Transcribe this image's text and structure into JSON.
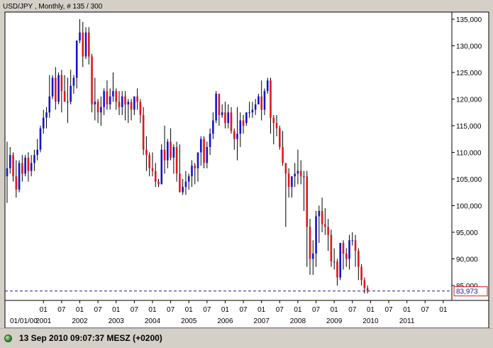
{
  "window": {
    "title": "USD/JPY , Monthly, # 135 / 300"
  },
  "status": {
    "timestamp": "13 Sep 2010 09:07:37  MESZ (+0200)"
  },
  "colors": {
    "bull": "#1414d0",
    "bear": "#e01818",
    "wick": "#000000",
    "plot_bg": "#ffffff",
    "frame_bg": "#d4d0c8",
    "current_line": "#1a1aa0",
    "price_tag_border": "#e01818"
  },
  "chart_data": {
    "type": "candlestick",
    "symbol": "USD/JPY",
    "timeframe": "Monthly",
    "start_date": "2000-01",
    "ylim": [
      80,
      137
    ],
    "y_ticks": [
      85,
      90,
      95,
      100,
      105,
      110,
      115,
      120,
      125,
      130,
      135
    ],
    "y_tick_labels": [
      "85,000",
      "90,000",
      "95,000",
      "100,000",
      "105,000",
      "110,000",
      "115,000",
      "120,000",
      "125,000",
      "130,000",
      "135,000"
    ],
    "x_month_ticks": [
      "01",
      "07",
      "01",
      "07",
      "01",
      "07",
      "01",
      "07",
      "01",
      "07",
      "01",
      "07",
      "01",
      "07",
      "01",
      "07",
      "01",
      "07",
      "01",
      "07",
      "01",
      "07",
      "01",
      "07"
    ],
    "x_year_labels": [
      "01/01/00",
      "2001",
      "2002",
      "2003",
      "2004",
      "2005",
      "2006",
      "2007",
      "2008",
      "2009",
      "2010",
      "2011"
    ],
    "current_price": 83.973,
    "current_price_label": "83,973",
    "candles": [
      [
        105.5,
        112.0,
        100.5,
        107.0
      ],
      [
        107.0,
        111.0,
        106.0,
        109.5
      ],
      [
        109.5,
        110.0,
        104.5,
        105.5
      ],
      [
        105.5,
        108.5,
        101.5,
        103.0
      ],
      [
        103.0,
        108.5,
        102.5,
        108.0
      ],
      [
        108.0,
        109.5,
        104.5,
        106.0
      ],
      [
        106.0,
        109.5,
        105.5,
        109.0
      ],
      [
        109.0,
        110.0,
        104.5,
        106.5
      ],
      [
        106.5,
        109.5,
        105.5,
        108.0
      ],
      [
        108.0,
        110.5,
        106.5,
        109.5
      ],
      [
        109.5,
        112.5,
        108.5,
        110.5
      ],
      [
        110.5,
        115.0,
        110.0,
        114.5
      ],
      [
        114.5,
        118.0,
        113.5,
        116.5
      ],
      [
        116.5,
        118.5,
        114.5,
        117.5
      ],
      [
        117.5,
        124.5,
        116.5,
        120.5
      ],
      [
        120.5,
        124.5,
        120.0,
        124.0
      ],
      [
        124.0,
        126.0,
        118.0,
        119.5
      ],
      [
        119.5,
        125.0,
        119.0,
        124.5
      ],
      [
        124.5,
        125.5,
        117.5,
        121.5
      ],
      [
        121.5,
        124.5,
        119.5,
        119.5
      ],
      [
        119.5,
        124.0,
        115.5,
        119.5
      ],
      [
        119.5,
        125.5,
        119.0,
        122.5
      ],
      [
        122.5,
        124.5,
        121.0,
        124.0
      ],
      [
        124.0,
        131.0,
        122.0,
        131.0
      ],
      [
        131.0,
        135.0,
        130.5,
        132.5
      ],
      [
        132.5,
        134.5,
        126.0,
        128.0
      ],
      [
        128.0,
        133.5,
        127.5,
        132.5
      ],
      [
        132.5,
        133.5,
        126.5,
        128.0
      ],
      [
        128.0,
        128.5,
        117.5,
        119.0
      ],
      [
        119.0,
        124.0,
        116.0,
        119.5
      ],
      [
        119.5,
        120.0,
        115.5,
        117.5
      ],
      [
        117.5,
        120.5,
        115.0,
        118.5
      ],
      [
        118.5,
        122.0,
        117.0,
        121.5
      ],
      [
        121.5,
        123.5,
        118.0,
        119.0
      ],
      [
        119.0,
        122.0,
        118.0,
        120.5
      ],
      [
        120.5,
        125.0,
        119.5,
        121.5
      ],
      [
        121.5,
        122.0,
        118.0,
        119.5
      ],
      [
        119.5,
        121.5,
        117.0,
        118.5
      ],
      [
        118.5,
        121.5,
        117.0,
        120.5
      ],
      [
        120.5,
        121.5,
        116.0,
        119.0
      ],
      [
        119.0,
        120.0,
        115.5,
        119.5
      ],
      [
        119.5,
        120.0,
        116.0,
        118.0
      ],
      [
        118.0,
        120.5,
        117.0,
        120.5
      ],
      [
        120.5,
        122.0,
        118.0,
        119.5
      ],
      [
        119.5,
        120.0,
        115.5,
        117.0
      ],
      [
        117.0,
        118.5,
        109.5,
        110.5
      ],
      [
        110.5,
        113.0,
        106.5,
        109.5
      ],
      [
        109.5,
        110.0,
        105.5,
        107.0
      ],
      [
        107.0,
        110.0,
        105.5,
        106.5
      ],
      [
        106.5,
        108.0,
        103.5,
        104.5
      ],
      [
        104.5,
        105.0,
        103.5,
        104.0
      ],
      [
        104.0,
        111.5,
        104.0,
        110.5
      ],
      [
        110.5,
        115.0,
        106.0,
        108.5
      ],
      [
        108.5,
        112.5,
        107.0,
        112.0
      ],
      [
        112.0,
        114.5,
        108.5,
        109.0
      ],
      [
        109.0,
        111.5,
        106.0,
        111.0
      ],
      [
        111.0,
        112.0,
        104.5,
        106.0
      ],
      [
        106.0,
        111.5,
        102.5,
        102.5
      ],
      [
        102.5,
        105.0,
        102.0,
        103.5
      ],
      [
        103.5,
        106.5,
        102.0,
        104.5
      ],
      [
        104.5,
        106.0,
        103.0,
        105.5
      ],
      [
        105.5,
        108.5,
        103.5,
        107.5
      ],
      [
        107.5,
        108.0,
        104.0,
        107.0
      ],
      [
        107.0,
        110.0,
        104.5,
        110.0
      ],
      [
        110.0,
        113.0,
        107.5,
        112.5
      ],
      [
        112.5,
        113.0,
        107.0,
        108.0
      ],
      [
        108.0,
        112.0,
        107.0,
        111.0
      ],
      [
        111.0,
        114.5,
        109.5,
        113.5
      ],
      [
        113.5,
        117.5,
        112.5,
        116.0
      ],
      [
        116.0,
        121.5,
        115.5,
        121.0
      ],
      [
        121.0,
        121.0,
        115.0,
        117.0
      ],
      [
        117.0,
        119.0,
        116.5,
        117.5
      ],
      [
        117.5,
        119.5,
        114.5,
        115.5
      ],
      [
        115.5,
        119.0,
        114.5,
        117.5
      ],
      [
        117.5,
        118.5,
        113.5,
        114.0
      ],
      [
        114.0,
        114.5,
        110.5,
        112.5
      ],
      [
        112.5,
        118.5,
        108.5,
        113.5
      ],
      [
        113.5,
        117.5,
        111.0,
        116.0
      ],
      [
        116.0,
        117.0,
        113.5,
        115.0
      ],
      [
        115.5,
        117.5,
        115.0,
        117.5
      ],
      [
        117.5,
        119.5,
        116.5,
        117.5
      ],
      [
        117.5,
        119.5,
        116.5,
        118.0
      ],
      [
        118.0,
        120.0,
        117.0,
        119.0
      ],
      [
        119.0,
        121.0,
        119.0,
        120.5
      ],
      [
        120.5,
        123.5,
        116.0,
        118.0
      ],
      [
        118.0,
        122.0,
        117.0,
        121.5
      ],
      [
        121.5,
        124.0,
        121.0,
        123.5
      ],
      [
        123.5,
        124.0,
        113.5,
        116.5
      ],
      [
        116.5,
        117.0,
        111.5,
        115.5
      ],
      [
        115.5,
        117.0,
        113.0,
        114.5
      ],
      [
        114.5,
        115.0,
        110.5,
        111.0
      ],
      [
        111.0,
        114.0,
        107.5,
        108.0
      ],
      [
        108.0,
        108.0,
        96.0,
        106.0
      ],
      [
        106.0,
        107.0,
        101.5,
        103.5
      ],
      [
        103.5,
        105.5,
        101.5,
        105.5
      ],
      [
        105.5,
        108.0,
        103.5,
        106.0
      ],
      [
        106.0,
        110.5,
        104.0,
        106.5
      ],
      [
        106.5,
        108.5,
        104.0,
        105.5
      ],
      [
        105.5,
        106.5,
        99.0,
        105.5
      ],
      [
        105.5,
        106.5,
        88.5,
        96.0
      ],
      [
        96.0,
        97.5,
        87.0,
        90.0
      ],
      [
        90.0,
        93.5,
        87.0,
        91.0
      ],
      [
        91.0,
        99.0,
        88.5,
        98.0
      ],
      [
        98.0,
        100.0,
        93.0,
        99.0
      ],
      [
        99.0,
        101.5,
        95.0,
        96.5
      ],
      [
        96.5,
        99.5,
        94.5,
        96.0
      ],
      [
        96.0,
        97.5,
        91.5,
        94.5
      ],
      [
        94.5,
        95.5,
        88.5,
        89.5
      ],
      [
        89.5,
        92.0,
        88.0,
        89.5
      ],
      [
        89.5,
        90.0,
        85.0,
        86.5
      ],
      [
        86.5,
        93.0,
        86.0,
        93.0
      ],
      [
        93.0,
        93.5,
        88.0,
        91.0
      ],
      [
        91.0,
        92.0,
        88.5,
        90.0
      ],
      [
        90.0,
        94.5,
        88.0,
        93.5
      ],
      [
        93.5,
        95.0,
        92.5,
        93.5
      ],
      [
        93.5,
        94.5,
        88.5,
        91.5
      ],
      [
        91.5,
        92.0,
        86.0,
        88.5
      ],
      [
        88.5,
        89.0,
        85.0,
        86.0
      ],
      [
        86.0,
        86.5,
        83.5,
        84.5
      ],
      [
        84.5,
        85.0,
        83.5,
        84.0
      ]
    ]
  }
}
